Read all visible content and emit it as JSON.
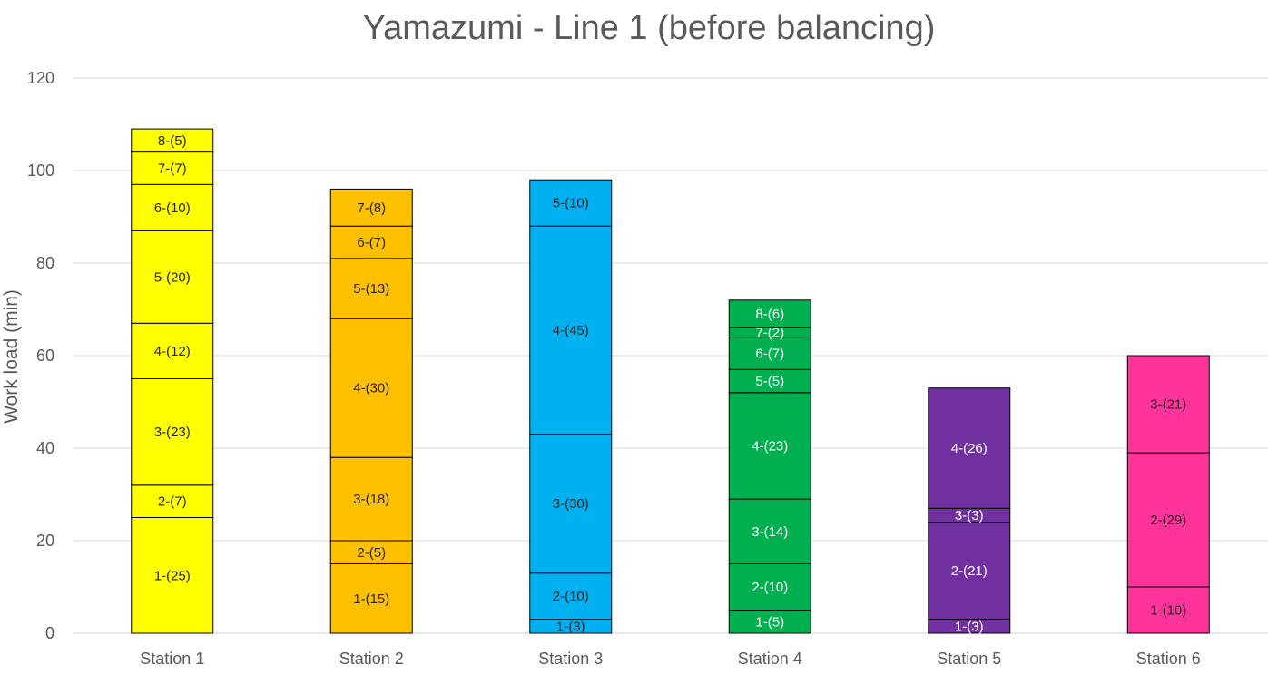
{
  "chart_data": {
    "type": "bar",
    "stacked": true,
    "title": "Yamazumi - Line 1 (before balancing)",
    "xlabel": "",
    "ylabel": "Work load (min)",
    "ylim": [
      0,
      120
    ],
    "yticks": [
      0,
      20,
      40,
      60,
      80,
      100,
      120
    ],
    "grid": true,
    "categories": [
      "Station 1",
      "Station 2",
      "Station 3",
      "Station 4",
      "Station 5",
      "Station 6"
    ],
    "stations": [
      {
        "name": "Station 1",
        "color": "#ffff00",
        "label_color": "#262626",
        "segments": [
          {
            "label": "1-(25)",
            "value": 25
          },
          {
            "label": "2-(7)",
            "value": 7
          },
          {
            "label": "3-(23)",
            "value": 23
          },
          {
            "label": "4-(12)",
            "value": 12
          },
          {
            "label": "5-(20)",
            "value": 20
          },
          {
            "label": "6-(10)",
            "value": 10
          },
          {
            "label": "7-(7)",
            "value": 7
          },
          {
            "label": "8-(5)",
            "value": 5
          }
        ]
      },
      {
        "name": "Station 2",
        "color": "#ffc000",
        "label_color": "#262626",
        "segments": [
          {
            "label": "1-(15)",
            "value": 15
          },
          {
            "label": "2-(5)",
            "value": 5
          },
          {
            "label": "3-(18)",
            "value": 18
          },
          {
            "label": "4-(30)",
            "value": 30
          },
          {
            "label": "5-(13)",
            "value": 13
          },
          {
            "label": "6-(7)",
            "value": 7
          },
          {
            "label": "7-(8)",
            "value": 8
          }
        ]
      },
      {
        "name": "Station 3",
        "color": "#00b0f0",
        "label_color": "#262626",
        "segments": [
          {
            "label": "1-(3)",
            "value": 3
          },
          {
            "label": "2-(10)",
            "value": 10
          },
          {
            "label": "3-(30)",
            "value": 30
          },
          {
            "label": "4-(45)",
            "value": 45
          },
          {
            "label": "5-(10)",
            "value": 10
          }
        ]
      },
      {
        "name": "Station 4",
        "color": "#00b050",
        "label_color": "#ffffff",
        "segments": [
          {
            "label": "1-(5)",
            "value": 5
          },
          {
            "label": "2-(10)",
            "value": 10
          },
          {
            "label": "3-(14)",
            "value": 14
          },
          {
            "label": "4-(23)",
            "value": 23
          },
          {
            "label": "5-(5)",
            "value": 5
          },
          {
            "label": "6-(7)",
            "value": 7
          },
          {
            "label": "7-(2)",
            "value": 2
          },
          {
            "label": "8-(6)",
            "value": 6
          }
        ]
      },
      {
        "name": "Station 5",
        "color": "#7030a0",
        "label_color": "#ffffff",
        "segments": [
          {
            "label": "1-(3)",
            "value": 3
          },
          {
            "label": "2-(21)",
            "value": 21
          },
          {
            "label": "3-(3)",
            "value": 3
          },
          {
            "label": "4-(26)",
            "value": 26
          }
        ]
      },
      {
        "name": "Station 6",
        "color": "#ff3399",
        "label_color": "#262626",
        "segments": [
          {
            "label": "1-(10)",
            "value": 10
          },
          {
            "label": "2-(29)",
            "value": 29
          },
          {
            "label": "3-(21)",
            "value": 21
          }
        ]
      }
    ]
  }
}
